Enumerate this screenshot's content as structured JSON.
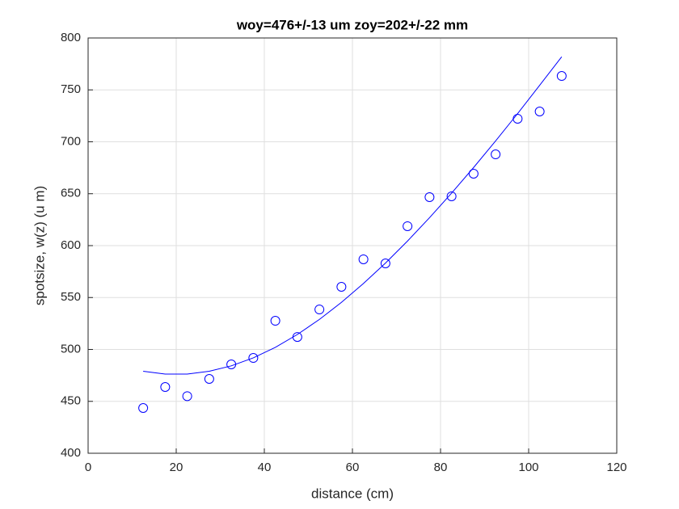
{
  "chart_data": {
    "type": "scatter",
    "title": "woy=476+/-13 um zoy=202+/-22 mm",
    "x_label": "distance  (cm)",
    "y_label": "spotsize, w(z) (u m)",
    "x": [
      12.5,
      17.5,
      22.5,
      27.5,
      32.5,
      37.5,
      42.5,
      47.5,
      52.5,
      57.5,
      62.5,
      67.5,
      72.5,
      77.5,
      82.5,
      87.5,
      92.5,
      97.5,
      102.5,
      107.5
    ],
    "series": [
      {
        "mode": "markers",
        "color": "#0000ff",
        "values": [
          443.6,
          463.8,
          455,
          471.6,
          485.6,
          491.8,
          527.6,
          512,
          538.5,
          560.3,
          586.8,
          582.9,
          618.7,
          646.7,
          647.5,
          669.3,
          687.9,
          722.2,
          729.2,
          763.4
        ]
      },
      {
        "mode": "lines",
        "color": "#0000ff",
        "values": [
          479.0,
          476.3,
          476.3,
          479.0,
          484.2,
          491.9,
          502.0,
          514.4,
          528.9,
          545.3,
          563.5,
          583.2,
          604.4,
          626.9,
          650.5,
          675.2,
          700.8,
          727.2,
          754.4,
          781.9
        ]
      }
    ],
    "xlim": [
      0,
      120
    ],
    "xticks": [
      0,
      20,
      40,
      60,
      80,
      100,
      120
    ],
    "ylim": [
      400,
      800
    ],
    "yticks": [
      400,
      450,
      500,
      550,
      600,
      650,
      700,
      750,
      800
    ],
    "grid": true
  }
}
